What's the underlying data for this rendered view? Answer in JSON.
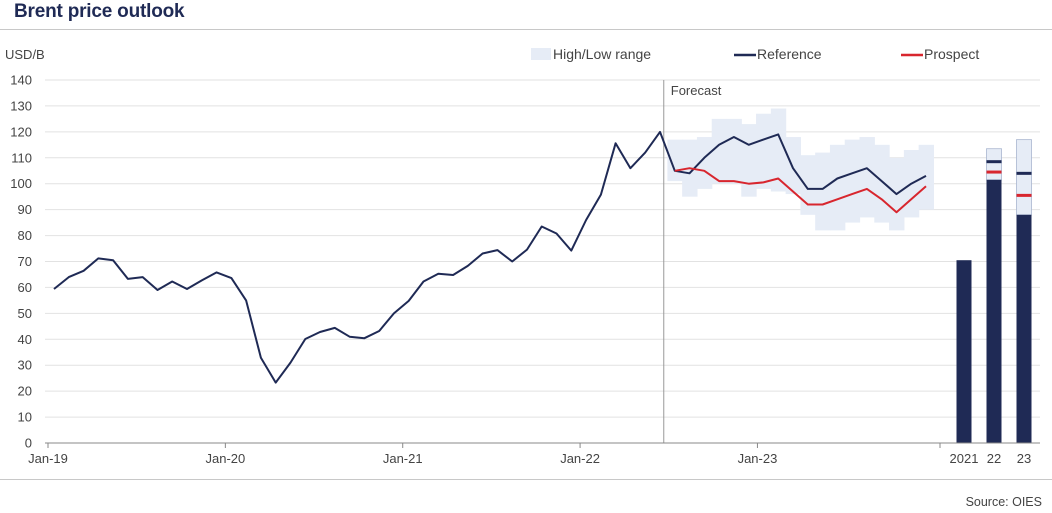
{
  "header": {
    "title": "Brent price outlook"
  },
  "footer": {
    "source": "Source: OIES"
  },
  "chart_data": {
    "type": "line",
    "ylabel": "USD/B",
    "ylim": [
      0,
      140
    ],
    "yticks": [
      0,
      10,
      20,
      30,
      40,
      50,
      60,
      70,
      80,
      90,
      100,
      110,
      120,
      130,
      140
    ],
    "xticks": [
      {
        "label": "Jan-19",
        "index": 0
      },
      {
        "label": "Jan-20",
        "index": 12
      },
      {
        "label": "Jan-21",
        "index": 24
      },
      {
        "label": "Jan-22",
        "index": 36
      },
      {
        "label": "Jan-23",
        "index": 48
      }
    ],
    "forecast_label": "Forecast",
    "forecast_start_index": 42,
    "legend": {
      "placement": "top",
      "entries": [
        {
          "key": "range",
          "label": "High/Low range"
        },
        {
          "key": "reference",
          "label": "Reference"
        },
        {
          "key": "prospect",
          "label": "Prospect"
        }
      ]
    },
    "colors": {
      "reference": "#1f2a55",
      "prospect": "#d8262e",
      "range": "#e6ecf6",
      "grid": "#e2e2e2"
    },
    "reference": [
      59.4,
      64.0,
      66.4,
      71.2,
      70.5,
      63.3,
      64.0,
      59.0,
      62.3,
      59.4,
      62.7,
      65.8,
      63.6,
      55.0,
      32.9,
      23.3,
      31.0,
      40.1,
      42.8,
      44.4,
      41.0,
      40.4,
      43.2,
      50.0,
      54.8,
      62.3,
      65.3,
      64.8,
      68.3,
      73.1,
      74.4,
      70.0,
      74.6,
      83.5,
      80.8,
      74.2,
      86.0,
      95.8,
      115.6,
      106.0,
      112.0,
      120.0,
      105.0,
      104.0,
      110.0,
      115.0,
      118.0,
      115.0,
      117.0,
      119.0,
      106.0,
      98.0,
      98.0,
      102.0,
      104.0,
      106.0,
      101.0,
      96.0,
      100.0,
      103.0
    ],
    "prospect_start_index": 42,
    "prospect": [
      105.0,
      106.0,
      105.0,
      101.0,
      101.0,
      100.0,
      100.5,
      102.0,
      97.0,
      92.0,
      92.0,
      94.0,
      96.0,
      98.0,
      94.0,
      89.0,
      94.0,
      99.0
    ],
    "range_start_index": 42,
    "range": [
      [
        101,
        117
      ],
      [
        95,
        117
      ],
      [
        98,
        118
      ],
      [
        100,
        125
      ],
      [
        100,
        125
      ],
      [
        95,
        123
      ],
      [
        98,
        127
      ],
      [
        97,
        129
      ],
      [
        96,
        118
      ],
      [
        88,
        111
      ],
      [
        82,
        112
      ],
      [
        82,
        115
      ],
      [
        85,
        117
      ],
      [
        87,
        118
      ],
      [
        85,
        115
      ],
      [
        82,
        110
      ],
      [
        87,
        113
      ],
      [
        90,
        115
      ]
    ],
    "annual": [
      {
        "label": "2021",
        "value": 70.5
      },
      {
        "label": "22",
        "value": 101.5,
        "high": 113.5,
        "reference": 108.5,
        "prospect": 104.5
      },
      {
        "label": "23",
        "value": 88.0,
        "high": 117.0,
        "reference": 104.0,
        "prospect": 95.5
      }
    ]
  }
}
